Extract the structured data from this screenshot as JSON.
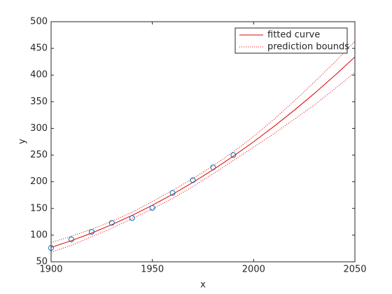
{
  "chart_data": {
    "type": "line",
    "xlabel": "x",
    "ylabel": "y",
    "xlim": [
      1900,
      2050
    ],
    "xticks": [
      1900,
      1950,
      2000,
      2050
    ],
    "ylim": [
      50,
      500
    ],
    "yticks": [
      50,
      100,
      150,
      200,
      250,
      300,
      350,
      400,
      450,
      500
    ],
    "x": [
      1900,
      1910,
      1920,
      1930,
      1940,
      1950,
      1960,
      1970,
      1980,
      1990,
      2000,
      2010,
      2020,
      2030,
      2040,
      2050
    ],
    "points": {
      "color": "#0072bd",
      "x": [
        1900,
        1910,
        1920,
        1930,
        1940,
        1950,
        1960,
        1970,
        1980,
        1990
      ],
      "values": [
        76,
        92,
        106,
        123,
        132,
        151,
        179,
        203,
        227,
        250
      ]
    },
    "series": [
      {
        "name": "fitted curve",
        "color": "#e00000",
        "values": [
          77,
          89.6,
          103.8,
          119.6,
          137,
          156,
          176.6,
          198.8,
          222.6,
          248,
          275,
          303.6,
          333.8,
          365.6,
          399,
          434
        ]
      },
      {
        "name": "prediction bounds",
        "color": "#e00000",
        "upper": [
          86,
          98,
          111,
          126,
          143,
          163,
          184,
          206,
          230,
          256,
          285,
          317,
          351,
          387,
          424,
          463
        ],
        "lower": [
          68,
          81,
          97,
          113,
          131,
          149,
          169,
          191,
          215,
          240,
          265,
          290,
          317,
          344,
          374,
          405
        ]
      }
    ],
    "legend": "top-right"
  }
}
